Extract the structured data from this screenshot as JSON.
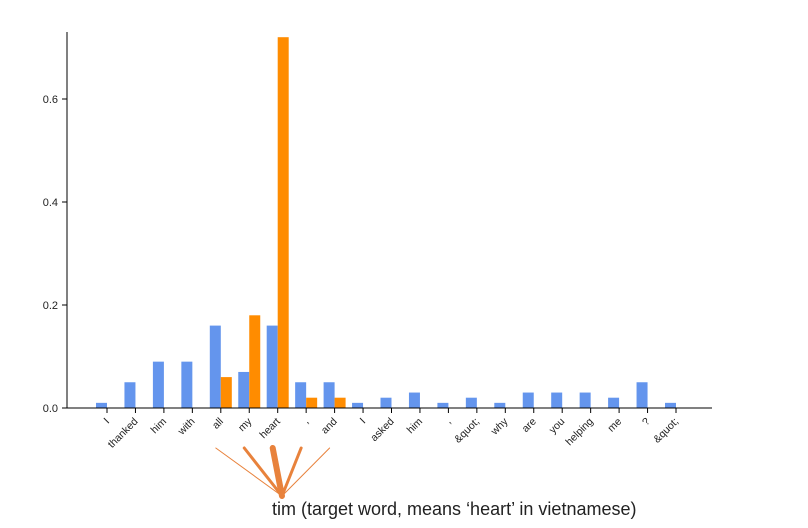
{
  "chart_data": {
    "type": "bar",
    "categories": [
      "I",
      "thanked",
      "him",
      "with",
      "all",
      "my",
      "heart",
      ",",
      "and",
      "I",
      "asked",
      "him",
      ",",
      "&quot;",
      "why",
      "are",
      "you",
      "helping",
      "me",
      "?",
      "&quot;"
    ],
    "series": [
      {
        "values": [
          0.01,
          0.05,
          0.09,
          0.09,
          0.16,
          0.07,
          0.16,
          0.05,
          0.05,
          0.01,
          0.02,
          0.03,
          0.01,
          0.02,
          0.01,
          0.03,
          0.03,
          0.03,
          0.02,
          0.05,
          0.01
        ]
      },
      {
        "values": [
          0,
          0,
          0,
          0,
          0.06,
          0.18,
          0.72,
          0.02,
          0.02,
          0,
          0,
          0,
          0,
          0,
          0,
          0,
          0,
          0,
          0,
          0,
          0
        ]
      }
    ],
    "colors": [
      "#6495ed",
      "#ff8c00"
    ],
    "yticks": [
      "0.0",
      "0.2",
      "0.4",
      "0.6"
    ],
    "ylim": [
      0,
      0.72
    ],
    "grid": false,
    "annotation": {
      "text": "tim (target word, means ‘heart’ in vietnamese)",
      "color": "#e8823c",
      "linked_categories": [
        4,
        5,
        6,
        7,
        8
      ]
    }
  }
}
